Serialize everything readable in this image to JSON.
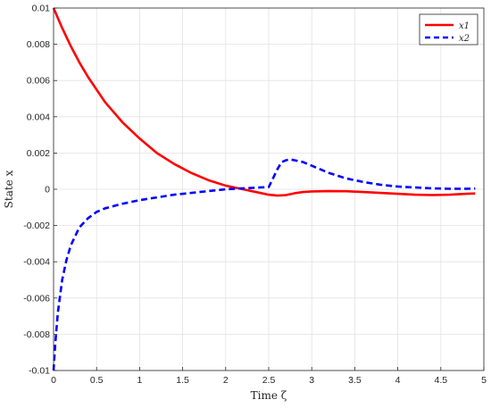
{
  "chart_data": {
    "type": "line",
    "xlabel": "Time ζ",
    "ylabel": "State x",
    "xlim": [
      0,
      5
    ],
    "ylim": [
      -0.01,
      0.01
    ],
    "grid": true,
    "legend_position": "top-right",
    "x_ticks": [
      "0",
      "0.5",
      "1",
      "1.5",
      "2",
      "2.5",
      "3",
      "3.5",
      "4",
      "4.5",
      "5"
    ],
    "y_ticks": [
      "-0.01",
      "-0.008",
      "-0.006",
      "-0.004",
      "-0.002",
      "0",
      "0.002",
      "0.004",
      "0.006",
      "0.008",
      "0.01"
    ],
    "series": [
      {
        "name": "x1",
        "color": "#ff0000",
        "line_style": "solid",
        "x": [
          0,
          0.1,
          0.2,
          0.3,
          0.4,
          0.5,
          0.6,
          0.8,
          1.0,
          1.2,
          1.4,
          1.6,
          1.8,
          2.0,
          2.2,
          2.4,
          2.5,
          2.6,
          2.7,
          2.8,
          2.9,
          3.0,
          3.2,
          3.4,
          3.6,
          3.8,
          4.0,
          4.2,
          4.4,
          4.6,
          4.8,
          4.9
        ],
        "values": [
          0.01,
          0.0089,
          0.0079,
          0.007,
          0.0062,
          0.0055,
          0.0048,
          0.0037,
          0.0028,
          0.002,
          0.0014,
          0.0009,
          0.0005,
          0.0002,
          0.0,
          -0.0002,
          -0.0003,
          -0.00035,
          -0.00032,
          -0.00022,
          -0.00015,
          -0.00012,
          -0.0001,
          -0.00011,
          -0.00015,
          -0.0002,
          -0.00025,
          -0.0003,
          -0.00032,
          -0.0003,
          -0.00025,
          -0.00023
        ]
      },
      {
        "name": "x2",
        "color": "#0000ff",
        "line_style": "dashed",
        "x": [
          0,
          0.02,
          0.05,
          0.1,
          0.15,
          0.2,
          0.3,
          0.4,
          0.5,
          0.6,
          0.8,
          1.0,
          1.2,
          1.4,
          1.6,
          1.8,
          2.0,
          2.2,
          2.4,
          2.5,
          2.55,
          2.6,
          2.65,
          2.7,
          2.75,
          2.8,
          2.9,
          3.0,
          3.2,
          3.4,
          3.6,
          3.8,
          4.0,
          4.2,
          4.4,
          4.6,
          4.8,
          4.9
        ],
        "values": [
          -0.01,
          -0.0085,
          -0.0068,
          -0.005,
          -0.0039,
          -0.0031,
          -0.0021,
          -0.0016,
          -0.00125,
          -0.00105,
          -0.0008,
          -0.0006,
          -0.00045,
          -0.0003,
          -0.0002,
          -0.0001,
          0.0,
          5e-05,
          0.0001,
          0.00012,
          0.0006,
          0.0011,
          0.0015,
          0.0016,
          0.00165,
          0.0016,
          0.0015,
          0.0013,
          0.0009,
          0.0006,
          0.0004,
          0.00025,
          0.00015,
          0.0001,
          5e-05,
          3e-05,
          3e-05,
          4e-05
        ]
      }
    ]
  }
}
